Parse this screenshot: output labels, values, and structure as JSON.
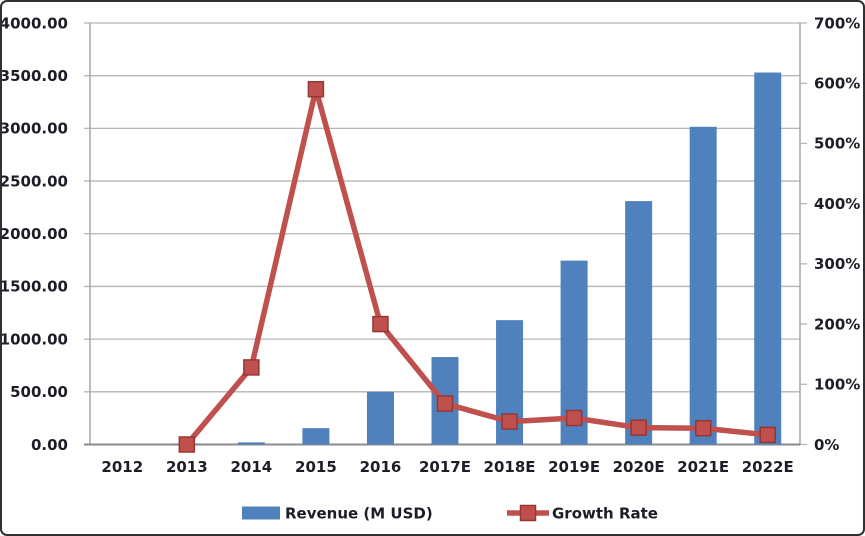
{
  "chart_data": {
    "type": "combo-bar-line",
    "title": "",
    "categories": [
      "2012",
      "2013",
      "2014",
      "2015",
      "2016",
      "2017E",
      "2018E",
      "2019E",
      "2020E",
      "2021E",
      "2022E"
    ],
    "series": [
      {
        "name": "Revenue (M USD)",
        "type": "bar",
        "axis": "left",
        "color": "#4f81bd",
        "values": [
          0,
          8,
          20,
          155,
          500,
          830,
          1180,
          1745,
          2310,
          3015,
          3530
        ]
      },
      {
        "name": "Growth Rate",
        "type": "line",
        "axis": "right",
        "color": "#c0504d",
        "marker": "square",
        "marker_border_color": "#953735",
        "values_pct": [
          null,
          0,
          128,
          590,
          200,
          68,
          38,
          44,
          28,
          27,
          16
        ]
      }
    ],
    "left_axis": {
      "min": 0,
      "max": 4000,
      "step": 500,
      "tick_labels": [
        "4000.00",
        "3500.00",
        "3000.00",
        "2500.00",
        "2000.00",
        "1500.00",
        "1000.00",
        "500.00",
        "0.00"
      ]
    },
    "right_axis": {
      "min": 0,
      "max": 700,
      "step": 100,
      "tick_labels": [
        "700%",
        "600%",
        "500%",
        "400%",
        "300%",
        "200%",
        "100%",
        "0%"
      ]
    },
    "grid": true,
    "legend_position": "bottom"
  },
  "colors": {
    "bar": "#4f81bd",
    "line": "#c0504d",
    "marker_border": "#953735",
    "gridline": "#b5b5b5",
    "plot_border": "#a6a6a6",
    "category_axis": "#8a8a8a",
    "text": "#1d1d27",
    "background": "#ffffff",
    "outer_border": "#2f2f2f"
  }
}
